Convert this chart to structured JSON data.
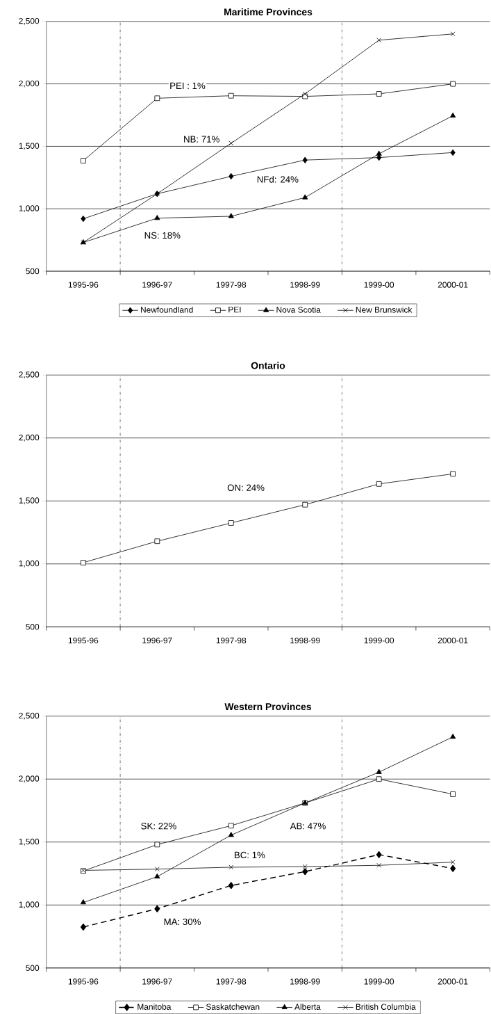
{
  "chart_data": [
    {
      "type": "line",
      "title": "Maritime Provinces",
      "categories": [
        "1995-96",
        "1996-97",
        "1997-98",
        "1998-99",
        "1999-00",
        "2000-01"
      ],
      "series": [
        {
          "name": "Newfoundland",
          "color": "#000000",
          "marker": "diamond",
          "values": [
            920,
            1120,
            1260,
            1390,
            1410,
            1450
          ]
        },
        {
          "name": "PEI",
          "color": "#000000",
          "marker": "square",
          "values": [
            1385,
            1885,
            1905,
            1900,
            1920,
            2000
          ]
        },
        {
          "name": "Nova Scotia",
          "color": "#000000",
          "marker": "triangle",
          "values": [
            730,
            925,
            940,
            1090,
            1440,
            1745
          ]
        },
        {
          "name": "New Brunswick",
          "color": "#000000",
          "marker": "cross",
          "values": [
            730,
            1120,
            1525,
            1920,
            2350,
            2400
          ]
        }
      ],
      "ylim": [
        500,
        2500
      ],
      "yticks": [
        {
          "value": 500,
          "label": "500"
        },
        {
          "value": 1000,
          "label": "1,000"
        },
        {
          "value": 1500,
          "label": "1,500"
        },
        {
          "value": 2000,
          "label": "2,000"
        },
        {
          "value": 2500,
          "label": "2,500"
        }
      ],
      "grid": "y",
      "legend": "bottom",
      "annotations": [
        "PEI : 1%",
        "NB: 71%",
        "NFd: 24%",
        "NS: 18%"
      ]
    },
    {
      "type": "line",
      "title": "Ontario",
      "categories": [
        "1995-96",
        "1996-97",
        "1997-98",
        "1998-99",
        "1999-00",
        "2000-01"
      ],
      "series": [
        {
          "color": "#000000",
          "marker": "square",
          "values": [
            1010,
            1180,
            1325,
            1470,
            1635,
            1715
          ]
        }
      ],
      "ylim": [
        500,
        2500
      ],
      "yticks": [
        {
          "value": 500,
          "label": "500"
        },
        {
          "value": 1000,
          "label": "1,000"
        },
        {
          "value": 1500,
          "label": "1,500"
        },
        {
          "value": 2000,
          "label": "2,000"
        },
        {
          "value": 2500,
          "label": "2,500"
        }
      ],
      "grid": "y",
      "annotations": [
        "ON: 24%"
      ]
    },
    {
      "type": "line",
      "title": "Western Provinces",
      "categories": [
        "1995-96",
        "1996-97",
        "1997-98",
        "1998-99",
        "1999-00",
        "2000-01"
      ],
      "series": [
        {
          "name": "Manitoba",
          "color": "#000000",
          "marker": "diamond",
          "line_style": "dashed",
          "values": [
            825,
            970,
            1155,
            1265,
            1400,
            1290
          ]
        },
        {
          "name": "Saskatchewan",
          "color": "#000000",
          "marker": "square",
          "values": [
            1270,
            1480,
            1630,
            1810,
            2000,
            1880
          ]
        },
        {
          "name": "Alberta",
          "color": "#000000",
          "marker": "triangle",
          "values": [
            1020,
            1225,
            1555,
            1810,
            2055,
            2335
          ]
        },
        {
          "name": "British Columbia",
          "color": "#000000",
          "marker": "cross",
          "values": [
            1275,
            1285,
            1300,
            1305,
            1315,
            1340
          ]
        }
      ],
      "ylim": [
        500,
        2500
      ],
      "yticks": [
        {
          "value": 500,
          "label": "500"
        },
        {
          "value": 1000,
          "label": "1,000"
        },
        {
          "value": 1500,
          "label": "1,500"
        },
        {
          "value": 2000,
          "label": "2,000"
        },
        {
          "value": 2500,
          "label": "2,500"
        }
      ],
      "grid": "y",
      "legend": "bottom",
      "annotations": [
        "SK: 22%",
        "AB: 47%",
        "BC: 1%",
        "MA: 30%"
      ]
    }
  ]
}
